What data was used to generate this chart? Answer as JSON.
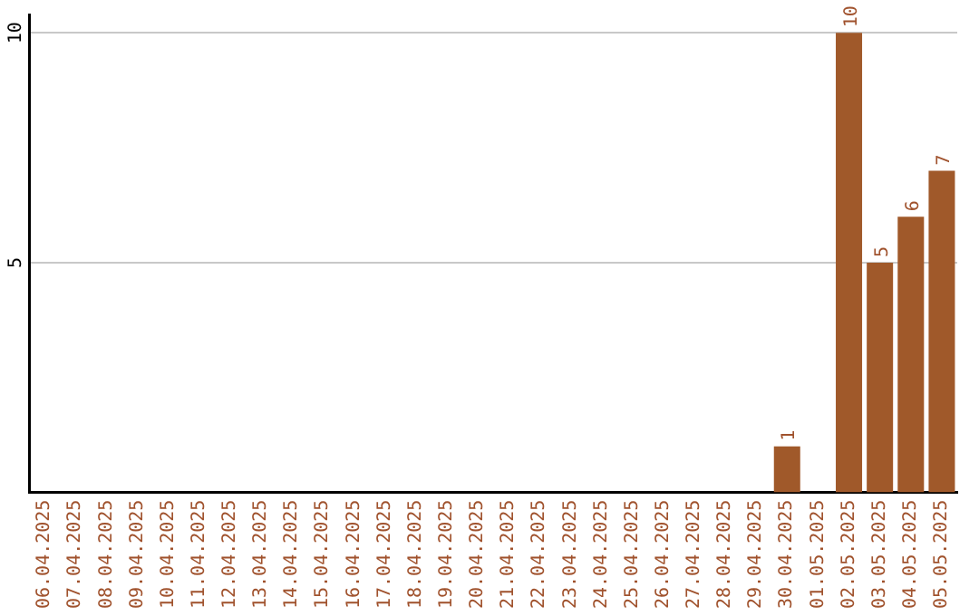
{
  "chart_data": {
    "type": "bar",
    "categories": [
      "06.04.2025",
      "07.04.2025",
      "08.04.2025",
      "09.04.2025",
      "10.04.2025",
      "11.04.2025",
      "12.04.2025",
      "13.04.2025",
      "14.04.2025",
      "15.04.2025",
      "16.04.2025",
      "17.04.2025",
      "18.04.2025",
      "19.04.2025",
      "20.04.2025",
      "21.04.2025",
      "22.04.2025",
      "23.04.2025",
      "24.04.2025",
      "25.04.2025",
      "26.04.2025",
      "27.04.2025",
      "28.04.2025",
      "29.04.2025",
      "30.04.2025",
      "01.05.2025",
      "02.05.2025",
      "03.05.2025",
      "04.05.2025",
      "05.05.2025"
    ],
    "values": [
      0,
      0,
      0,
      0,
      0,
      0,
      0,
      0,
      0,
      0,
      0,
      0,
      0,
      0,
      0,
      0,
      0,
      0,
      0,
      0,
      0,
      0,
      0,
      0,
      1,
      0,
      10,
      5,
      6,
      7
    ],
    "value_labels": [
      null,
      null,
      null,
      null,
      null,
      null,
      null,
      null,
      null,
      null,
      null,
      null,
      null,
      null,
      null,
      null,
      null,
      null,
      null,
      null,
      null,
      null,
      null,
      null,
      "1",
      null,
      "10",
      "5",
      "6",
      "7"
    ],
    "color": "#a0592a",
    "ylim": [
      0,
      10.4
    ],
    "yticks": [
      5,
      10
    ],
    "grid": "y",
    "legend": false
  }
}
